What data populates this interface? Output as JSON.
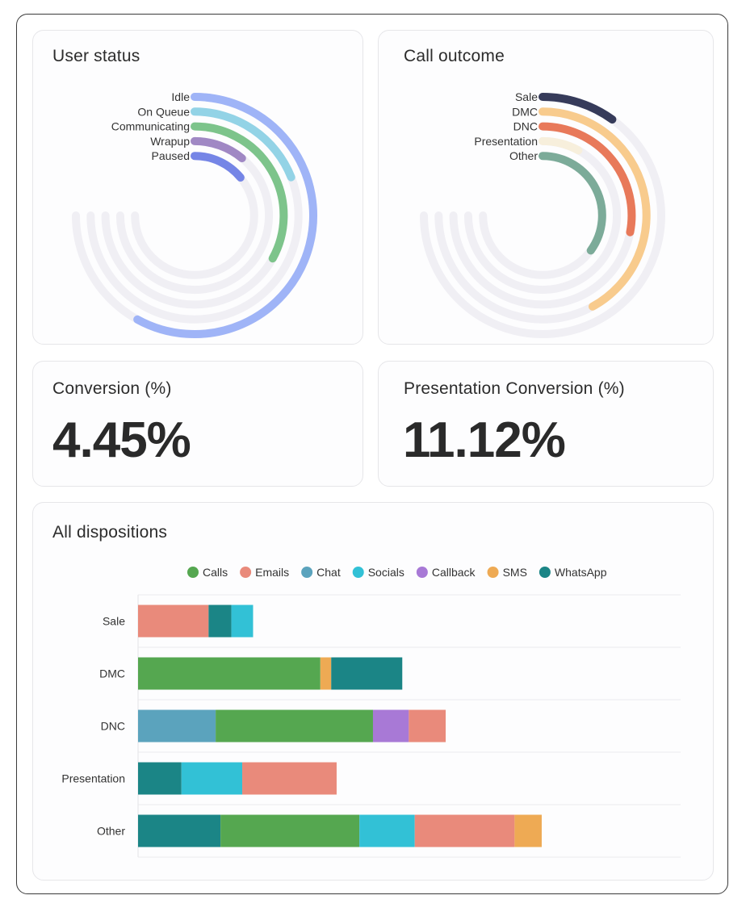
{
  "cards": {
    "user_status_title": "User status",
    "call_outcome_title": "Call outcome",
    "conversion_title": "Conversion (%)",
    "conversion_value": "4.45%",
    "presentation_conversion_title": "Presentation Conversion (%)",
    "presentation_conversion_value": "11.12%",
    "all_dispositions_title": "All dispositions"
  },
  "chart_data": [
    {
      "type": "radial-bar",
      "title": "User status",
      "max": 100,
      "track_color": "#f0eff4",
      "series": [
        {
          "name": "Idle",
          "value": 58,
          "color": "#9fb4f7"
        },
        {
          "name": "On Queue",
          "value": 19,
          "color": "#93d3e6"
        },
        {
          "name": "Communicating",
          "value": 33,
          "color": "#7dc48b"
        },
        {
          "name": "Wrapup",
          "value": 11,
          "color": "#a088c4"
        },
        {
          "name": "Paused",
          "value": 14,
          "color": "#7585e6"
        }
      ]
    },
    {
      "type": "radial-bar",
      "title": "Call outcome",
      "max": 100,
      "track_color": "#f0eff4",
      "series": [
        {
          "name": "Sale",
          "value": 10,
          "color": "#363b5a"
        },
        {
          "name": "DMC",
          "value": 42,
          "color": "#f8cb8d"
        },
        {
          "name": "DNC",
          "value": 28,
          "color": "#e8795a"
        },
        {
          "name": "Presentation",
          "value": 8,
          "color": "#f7efdc"
        },
        {
          "name": "Other",
          "value": 35,
          "color": "#7cab99"
        }
      ]
    },
    {
      "type": "bar",
      "orientation": "horizontal",
      "stacked": true,
      "title": "All dispositions",
      "categories": [
        "Sale",
        "DMC",
        "DNC",
        "Presentation",
        "Other"
      ],
      "xlim": [
        0,
        100
      ],
      "legend_position": "top",
      "series": [
        {
          "name": "Calls",
          "color": "#55a750",
          "values": [
            0,
            33.6,
            29,
            0,
            25.6
          ]
        },
        {
          "name": "Emails",
          "color": "#e98a7b",
          "values": [
            13,
            0,
            6.8,
            17.4,
            18.4
          ]
        },
        {
          "name": "Chat",
          "color": "#5ba3bd",
          "values": [
            0,
            0,
            14.3,
            0,
            0
          ]
        },
        {
          "name": "Socials",
          "color": "#32c1d6",
          "values": [
            4,
            0,
            0,
            11.2,
            10.2
          ]
        },
        {
          "name": "Callback",
          "color": "#a879d6",
          "values": [
            0,
            0,
            6.6,
            0,
            0
          ]
        },
        {
          "name": "SMS",
          "color": "#eeaa54",
          "values": [
            0,
            2,
            0,
            0,
            5
          ]
        },
        {
          "name": "WhatsApp",
          "color": "#1b8586",
          "values": [
            4.2,
            13.1,
            0,
            8,
            15.2
          ]
        }
      ],
      "segment_order": [
        [
          "Emails",
          "WhatsApp",
          "Socials"
        ],
        [
          "Calls",
          "SMS",
          "WhatsApp"
        ],
        [
          "Chat",
          "Calls",
          "Callback",
          "Emails"
        ],
        [
          "WhatsApp",
          "Socials",
          "Emails"
        ],
        [
          "WhatsApp",
          "Calls",
          "Socials",
          "Emails",
          "SMS"
        ]
      ]
    }
  ]
}
